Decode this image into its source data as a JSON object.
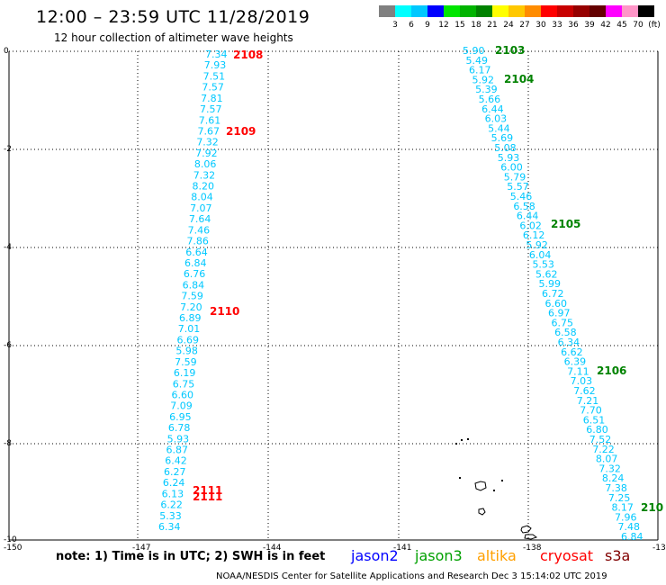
{
  "title": "12:00 – 23:59 UTC 11/28/2019",
  "subtitle": "12 hour collection of altimeter wave heights",
  "colorbar": {
    "colors": [
      "#808080",
      "#00ffff",
      "#00c8ff",
      "#0000ff",
      "#00e600",
      "#00b400",
      "#008200",
      "#ffff00",
      "#ffc800",
      "#ff8c00",
      "#ff0000",
      "#c80000",
      "#960000",
      "#640000",
      "#ff00ff",
      "#ff96c8",
      "#000000"
    ],
    "labels": [
      "",
      "3",
      "6",
      "9",
      "12",
      "15",
      "18",
      "21",
      "24",
      "27",
      "30",
      "33",
      "36",
      "39",
      "42",
      "45",
      "70",
      "(ft)"
    ]
  },
  "axes": {
    "x_ticks": [
      "-150",
      "-147",
      "-144",
      "-141",
      "-138",
      "-13"
    ],
    "y_ticks": [
      "0",
      "-2",
      "-4",
      "-6",
      "-8",
      "-10"
    ]
  },
  "pass_labels": [
    {
      "text": "2108",
      "color": "#ff0000"
    },
    {
      "text": "2109",
      "color": "#ff0000"
    },
    {
      "text": "2110",
      "color": "#ff0000"
    },
    {
      "text": "2111",
      "color": "#ff0000"
    },
    {
      "text": "2111",
      "color": "#ff0000"
    },
    {
      "text": "2103",
      "color": "#008200"
    },
    {
      "text": "2104",
      "color": "#008200"
    },
    {
      "text": "2105",
      "color": "#008200"
    },
    {
      "text": "2106",
      "color": "#008200"
    },
    {
      "text": "210",
      "color": "#008200"
    }
  ],
  "track_west": {
    "color": "#00c8ff",
    "values": [
      "7.34",
      "7.93",
      "7.51",
      "7.57",
      "7.81",
      "7.57",
      "7.61",
      "7.67",
      "7.32",
      "7.92",
      "8.06",
      "7.32",
      "8.20",
      "8.04",
      "7.07",
      "7.64",
      "7.46",
      "7.86",
      "6.64",
      "6.84",
      "6.76",
      "6.84",
      "7.59",
      "7.20",
      "6.89",
      "7.01",
      "6.69",
      "5.98",
      "7.59",
      "6.19",
      "6.75",
      "6.60",
      "7.09",
      "6.95",
      "6.78",
      "5.93",
      "6.87",
      "6.42",
      "6.27",
      "6.24",
      "6.13",
      "6.22",
      "5.33",
      "6.34"
    ]
  },
  "track_east": {
    "color": "#00c8ff",
    "values": [
      "5.90",
      "5.49",
      "6.17",
      "5.92",
      "5.39",
      "5.66",
      "6.44",
      "6.03",
      "5.44",
      "5.69",
      "5.08",
      "5.93",
      "6.00",
      "5.79",
      "5.57",
      "5.46",
      "6.58",
      "6.44",
      "6.02",
      "6.12",
      "5.92",
      "6.04",
      "5.53",
      "5.62",
      "5.99",
      "6.72",
      "6.60",
      "6.97",
      "6.75",
      "6.58",
      "6.34",
      "6.62",
      "6.39",
      "7.11",
      "7.03",
      "7.62",
      "7.21",
      "7.70",
      "6.51",
      "6.80",
      "7.52",
      "7.22",
      "8.07",
      "7.32",
      "8.24",
      "7.38",
      "7.25",
      "8.17",
      "7.96",
      "7.48",
      "6.84"
    ]
  },
  "note": "note:  1) Time is in UTC;  2) SWH is in feet",
  "satellites": [
    {
      "name": "jason2",
      "color": "#0000ff"
    },
    {
      "name": "jason3",
      "color": "#00a000"
    },
    {
      "name": "altika",
      "color": "#ffa000"
    },
    {
      "name": "cryosat",
      "color": "#ff0000"
    },
    {
      "name": "s3a",
      "color": "#800000"
    }
  ],
  "footer": "NOAA/NESDIS Center for Satellite Applications and Research    Dec  3 15:14:02 UTC 2019"
}
